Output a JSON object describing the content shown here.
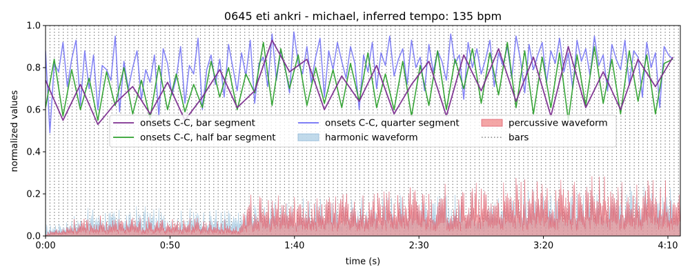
{
  "chart_data": {
    "type": "line",
    "title": "0645 eti ankri - michael, inferred tempo: 135 bpm",
    "xlabel": "time (s)",
    "ylabel": "normalized values",
    "xlim": [
      0,
      255
    ],
    "ylim": [
      0,
      1.0
    ],
    "x_ticks": [
      {
        "value": 0,
        "label": "0:00"
      },
      {
        "value": 50,
        "label": "0:50"
      },
      {
        "value": 100,
        "label": "1:40"
      },
      {
        "value": 150,
        "label": "2:30"
      },
      {
        "value": 200,
        "label": "3:20"
      },
      {
        "value": 250,
        "label": "4:10"
      }
    ],
    "y_ticks": [
      {
        "value": 0.0,
        "label": "0.0"
      },
      {
        "value": 0.2,
        "label": "0.2"
      },
      {
        "value": 0.4,
        "label": "0.4"
      },
      {
        "value": 0.6,
        "label": "0.6"
      },
      {
        "value": 0.8,
        "label": "0.8"
      },
      {
        "value": 1.0,
        "label": "1.0"
      }
    ],
    "bars_interval_s": 1.778,
    "legend_placement": "center",
    "colors": {
      "bar_segment": "#7b2d8e",
      "half_bar_segment": "#2ca02c",
      "quarter_segment": "#6b6bf5",
      "harmonic": "#a6cbe3",
      "percussive": "#f08080",
      "bars": "#808080"
    },
    "series": [
      {
        "name": "onsets C-C, bar segment",
        "x": [
          0,
          7,
          14,
          21,
          28,
          35,
          42,
          49,
          56,
          63,
          70,
          77,
          84,
          91,
          98,
          105,
          112,
          119,
          126,
          133,
          140,
          147,
          154,
          161,
          168,
          175,
          182,
          189,
          196,
          203,
          210,
          217,
          224,
          231,
          238,
          245,
          252
        ],
        "y": [
          0.74,
          0.55,
          0.72,
          0.53,
          0.63,
          0.71,
          0.58,
          0.73,
          0.55,
          0.66,
          0.79,
          0.61,
          0.69,
          0.93,
          0.78,
          0.84,
          0.6,
          0.76,
          0.64,
          0.81,
          0.58,
          0.72,
          0.83,
          0.57,
          0.86,
          0.69,
          0.89,
          0.64,
          0.85,
          0.57,
          0.9,
          0.61,
          0.78,
          0.6,
          0.84,
          0.71,
          0.85
        ]
      },
      {
        "name": "onsets C-C, half bar segment",
        "x": [
          0,
          3.5,
          7,
          10.5,
          14,
          17.5,
          21,
          24.5,
          28,
          31.5,
          35,
          38.5,
          42,
          45.5,
          49,
          52.5,
          56,
          59.5,
          63,
          66.5,
          70,
          73.5,
          77,
          80.5,
          84,
          87.5,
          91,
          94.5,
          98,
          101.5,
          105,
          108.5,
          112,
          115.5,
          119,
          122.5,
          126,
          129.5,
          133,
          136.5,
          140,
          143.5,
          147,
          150.5,
          154,
          157.5,
          161,
          164.5,
          168,
          171.5,
          175,
          178.5,
          182,
          185.5,
          189,
          192.5,
          196,
          199.5,
          203,
          206.5,
          210,
          213.5,
          217,
          220.5,
          224,
          227.5,
          231,
          234.5,
          238,
          241.5,
          245,
          248.5,
          252
        ],
        "y": [
          0.61,
          0.84,
          0.57,
          0.79,
          0.6,
          0.75,
          0.55,
          0.78,
          0.62,
          0.8,
          0.58,
          0.74,
          0.56,
          0.81,
          0.6,
          0.77,
          0.59,
          0.72,
          0.61,
          0.83,
          0.66,
          0.8,
          0.6,
          0.77,
          0.68,
          0.92,
          0.62,
          0.89,
          0.7,
          0.86,
          0.62,
          0.8,
          0.63,
          0.79,
          0.61,
          0.82,
          0.64,
          0.87,
          0.61,
          0.77,
          0.6,
          0.83,
          0.57,
          0.81,
          0.62,
          0.88,
          0.6,
          0.84,
          0.7,
          0.89,
          0.63,
          0.87,
          0.67,
          0.92,
          0.61,
          0.88,
          0.58,
          0.85,
          0.61,
          0.87,
          0.55,
          0.86,
          0.62,
          0.9,
          0.63,
          0.84,
          0.58,
          0.88,
          0.64,
          0.86,
          0.58,
          0.82,
          0.84
        ]
      },
      {
        "name": "onsets C-C, quarter segment",
        "x_start": 0,
        "x_step": 1.75,
        "y": [
          0.88,
          0.49,
          0.82,
          0.78,
          0.92,
          0.71,
          0.84,
          0.93,
          0.62,
          0.88,
          0.7,
          0.86,
          0.6,
          0.81,
          0.79,
          0.74,
          0.95,
          0.59,
          0.83,
          0.7,
          0.8,
          0.88,
          0.65,
          0.79,
          0.73,
          0.86,
          0.57,
          0.89,
          0.82,
          0.67,
          0.75,
          0.9,
          0.63,
          0.81,
          0.77,
          0.94,
          0.6,
          0.79,
          0.86,
          0.72,
          0.84,
          0.66,
          0.91,
          0.8,
          0.69,
          0.87,
          0.76,
          0.93,
          0.63,
          0.82,
          0.85,
          0.71,
          0.96,
          0.74,
          0.88,
          0.8,
          0.68,
          0.97,
          0.82,
          0.77,
          0.9,
          0.73,
          0.85,
          0.94,
          0.66,
          0.88,
          0.79,
          0.92,
          0.83,
          0.75,
          0.9,
          0.82,
          0.6,
          0.86,
          0.78,
          0.92,
          0.7,
          0.87,
          0.81,
          0.95,
          0.76,
          0.84,
          0.89,
          0.72,
          0.93,
          0.8,
          0.85,
          0.69,
          0.91,
          0.78,
          0.88,
          0.83,
          0.74,
          0.96,
          0.82,
          0.86,
          0.65,
          0.92,
          0.8,
          0.89,
          0.77,
          0.84,
          0.93,
          0.71,
          0.87,
          0.81,
          0.9,
          0.75,
          0.95,
          0.84,
          0.68,
          0.91,
          0.79,
          0.86,
          0.92,
          0.73,
          0.88,
          0.82,
          0.94,
          0.78,
          0.87,
          0.7,
          0.93,
          0.83,
          0.89,
          0.76,
          0.95,
          0.81,
          0.86,
          0.69,
          0.91,
          0.84,
          0.79,
          0.93,
          0.72,
          0.88,
          0.85,
          0.66,
          0.92,
          0.8,
          0.87,
          0.61,
          0.9,
          0.86,
          0.84
        ]
      }
    ],
    "waveforms": [
      {
        "name": "harmonic waveform",
        "x_start": 0,
        "x_step": 0.5,
        "envelope_points": [
          [
            0,
            0.06
          ],
          [
            10,
            0.1
          ],
          [
            20,
            0.15
          ],
          [
            30,
            0.13
          ],
          [
            40,
            0.16
          ],
          [
            50,
            0.12
          ],
          [
            60,
            0.15
          ],
          [
            70,
            0.14
          ],
          [
            78,
            0.12
          ],
          [
            80,
            0.16
          ],
          [
            90,
            0.2
          ],
          [
            100,
            0.19
          ],
          [
            110,
            0.2
          ],
          [
            120,
            0.21
          ],
          [
            130,
            0.19
          ],
          [
            140,
            0.22
          ],
          [
            150,
            0.23
          ],
          [
            160,
            0.21
          ],
          [
            170,
            0.24
          ],
          [
            180,
            0.22
          ],
          [
            190,
            0.24
          ],
          [
            200,
            0.22
          ],
          [
            210,
            0.25
          ],
          [
            220,
            0.24
          ],
          [
            230,
            0.25
          ],
          [
            240,
            0.26
          ],
          [
            250,
            0.24
          ],
          [
            255,
            0.2
          ]
        ]
      },
      {
        "name": "percussive waveform",
        "x_start": 0,
        "x_step": 0.5,
        "envelope_points": [
          [
            0,
            0.02
          ],
          [
            10,
            0.08
          ],
          [
            20,
            0.1
          ],
          [
            30,
            0.1
          ],
          [
            40,
            0.09
          ],
          [
            50,
            0.1
          ],
          [
            60,
            0.1
          ],
          [
            70,
            0.09
          ],
          [
            78,
            0.06
          ],
          [
            80,
            0.2
          ],
          [
            90,
            0.2
          ],
          [
            100,
            0.22
          ],
          [
            110,
            0.23
          ],
          [
            120,
            0.25
          ],
          [
            130,
            0.24
          ],
          [
            140,
            0.25
          ],
          [
            150,
            0.26
          ],
          [
            160,
            0.25
          ],
          [
            170,
            0.27
          ],
          [
            180,
            0.26
          ],
          [
            190,
            0.28
          ],
          [
            200,
            0.29
          ],
          [
            210,
            0.3
          ],
          [
            220,
            0.3
          ],
          [
            230,
            0.31
          ],
          [
            240,
            0.3
          ],
          [
            250,
            0.3
          ],
          [
            255,
            0.25
          ]
        ]
      }
    ],
    "legend": [
      {
        "label": "onsets C-C, bar segment",
        "key": "bar_segment",
        "kind": "line"
      },
      {
        "label": "onsets C-C, half bar segment",
        "key": "half_bar_segment",
        "kind": "line"
      },
      {
        "label": "onsets C-C, quarter segment",
        "key": "quarter_segment",
        "kind": "line"
      },
      {
        "label": "harmonic waveform",
        "key": "harmonic",
        "kind": "patch"
      },
      {
        "label": "percussive waveform",
        "key": "percussive",
        "kind": "patch"
      },
      {
        "label": "bars",
        "key": "bars",
        "kind": "dotted"
      }
    ]
  }
}
